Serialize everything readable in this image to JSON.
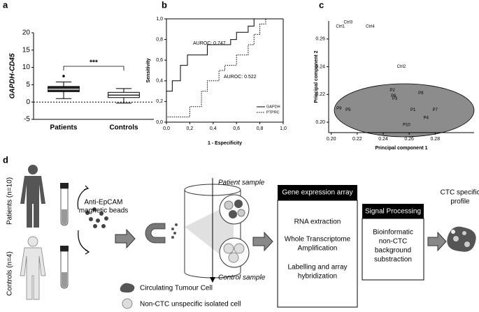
{
  "panels": [
    "a",
    "b",
    "c",
    "d"
  ],
  "chart_data": [
    {
      "type": "box",
      "ylabel": "GAPDH-CD45",
      "categories": [
        "Patients",
        "Controls"
      ],
      "values": [
        {
          "min": 1,
          "q1": 3,
          "median": 3.7,
          "q3": 4.5,
          "max": 5.8,
          "outliers": [
            7.5
          ]
        },
        {
          "min": -0.3,
          "q1": 1.3,
          "median": 2,
          "q3": 2.8,
          "max": 3.9
        }
      ],
      "colors": [
        "#222222",
        "#ffffff"
      ],
      "reference_line": 0,
      "annotations": [
        "***"
      ],
      "ylim": [
        -5,
        20
      ],
      "yticks": [
        -5,
        0,
        5,
        10,
        15,
        20
      ]
    },
    {
      "type": "line",
      "xlabel": "1 - Especificity",
      "ylabel": "Sensitivity",
      "annotations": [
        "AUROC: 0.747",
        "AUROC: 0.522"
      ],
      "legend": "lower right",
      "series": [
        {
          "name": "GAPDH",
          "color": "#000000",
          "style": "solid",
          "x": [
            0,
            0,
            0.05,
            0.05,
            0.12,
            0.12,
            0.18,
            0.18,
            0.35,
            0.35,
            0.55,
            0.55,
            0.6,
            0.6,
            0.7,
            0.7,
            0.75,
            0.75,
            1
          ],
          "values": [
            0,
            0.3,
            0.3,
            0.4,
            0.4,
            0.55,
            0.55,
            0.65,
            0.65,
            0.75,
            0.75,
            0.8,
            0.8,
            0.87,
            0.87,
            0.93,
            0.93,
            1,
            1
          ]
        },
        {
          "name": "PTPRC",
          "color": "#000000",
          "style": "dotted",
          "x": [
            0,
            0,
            0.2,
            0.2,
            0.3,
            0.3,
            0.35,
            0.35,
            0.45,
            0.45,
            0.5,
            0.5,
            0.6,
            0.6,
            0.7,
            0.7,
            0.75,
            0.75,
            0.8,
            0.8,
            0.85,
            0.85,
            1
          ],
          "values": [
            0,
            0.05,
            0.05,
            0.15,
            0.15,
            0.3,
            0.3,
            0.4,
            0.4,
            0.5,
            0.5,
            0.55,
            0.55,
            0.65,
            0.65,
            0.75,
            0.75,
            0.85,
            0.85,
            0.95,
            0.95,
            1,
            1
          ]
        }
      ],
      "xlim": [
        0,
        1
      ],
      "ylim": [
        0,
        1
      ],
      "xticks": [
        {
          "value": 0,
          "label": "0,0"
        },
        {
          "value": 0.2,
          "label": "0,2"
        },
        {
          "value": 0.4,
          "label": "0,4"
        },
        {
          "value": 0.6,
          "label": "0,6"
        },
        {
          "value": 0.8,
          "label": "0,8"
        },
        {
          "value": 1,
          "label": "1,0"
        }
      ],
      "yticks": [
        {
          "value": 0,
          "label": "0,0"
        },
        {
          "value": 0.2,
          "label": "0,2"
        },
        {
          "value": 0.4,
          "label": "0,4"
        },
        {
          "value": 0.6,
          "label": "0,6"
        },
        {
          "value": 0.8,
          "label": "0,8"
        },
        {
          "value": 1,
          "label": "1,0"
        }
      ]
    },
    {
      "type": "scatter",
      "xlabel": "Principal component 1",
      "ylabel": "Principal component 2",
      "labels": [
        "Ctrl1",
        "Ctrl3",
        "Ctrl4",
        "Ctrl2",
        "P2",
        "P6",
        "P3",
        "P8",
        "P9",
        "P5",
        "P1",
        "P7",
        "P4",
        "P10"
      ],
      "x": [
        0.207,
        0.213,
        0.23,
        0.254,
        0.247,
        0.248,
        0.249,
        0.269,
        0.206,
        0.213,
        0.263,
        0.28,
        0.273,
        0.258
      ],
      "values": [
        0.269,
        0.272,
        0.269,
        0.24,
        0.223,
        0.219,
        0.217,
        0.221,
        0.21,
        0.209,
        0.209,
        0.209,
        0.203,
        0.198
      ],
      "xlim": [
        0.198,
        0.31
      ],
      "ylim": [
        0.1925,
        0.273
      ],
      "xticks": [
        {
          "value": 0.2,
          "label": "0.20"
        },
        {
          "value": 0.22,
          "label": "0.22"
        },
        {
          "value": 0.24,
          "label": "0.24"
        },
        {
          "value": 0.26,
          "label": "0.26"
        },
        {
          "value": 0.28,
          "label": "0.28"
        }
      ],
      "yticks": [
        {
          "value": 0.2,
          "label": "0.20"
        },
        {
          "value": 0.22,
          "label": "0.22"
        },
        {
          "value": 0.24,
          "label": "0.24"
        },
        {
          "value": 0.26,
          "label": "0.26"
        }
      ]
    }
  ],
  "diagram": {
    "patients": "Patients (n=10)",
    "controls": "Controls (n=4)",
    "beads": [
      "Anti-EpCAM",
      "magnetic beads"
    ],
    "patient_sample": "Patient sample",
    "control_sample": "Control sample",
    "gene_box": {
      "title": "Gene expression array",
      "steps": [
        [
          "RNA extraction"
        ],
        [
          "Whole Transcriptome",
          "Amplification"
        ],
        [
          "Labelling and array",
          "hybridization"
        ]
      ]
    },
    "signal_box": {
      "title": "Signal Processing",
      "lines": [
        "Bioinformatic",
        "non-CTC",
        "background",
        "substraction"
      ]
    },
    "result": [
      "CTC specific",
      "profile"
    ],
    "legend": [
      "Circulating Tumour Cell",
      "Non-CTC unspecific isolated cell"
    ]
  }
}
